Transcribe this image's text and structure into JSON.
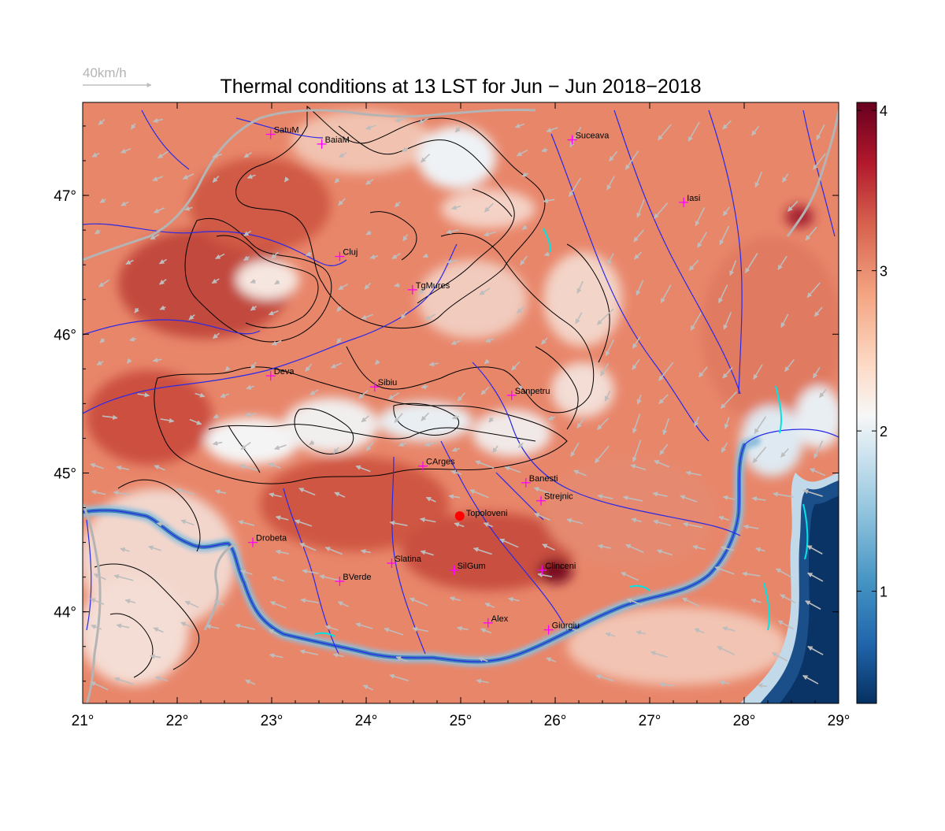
{
  "title": "Thermal conditions at 13 LST for Jun − Jun  2018−2018",
  "wind_scale": {
    "label": "40km/h"
  },
  "map": {
    "lon_range": [
      21,
      29
    ],
    "lat_range": [
      43.34,
      47.67
    ],
    "x_ticks": [
      {
        "value": 21,
        "label": "21°"
      },
      {
        "value": 22,
        "label": "22°"
      },
      {
        "value": 23,
        "label": "23°"
      },
      {
        "value": 24,
        "label": "24°"
      },
      {
        "value": 25,
        "label": "25°"
      },
      {
        "value": 26,
        "label": "26°"
      },
      {
        "value": 27,
        "label": "27°"
      },
      {
        "value": 28,
        "label": "28°"
      },
      {
        "value": 29,
        "label": "29°"
      }
    ],
    "y_ticks": [
      {
        "value": 44,
        "label": "44°"
      },
      {
        "value": 45,
        "label": "45°"
      },
      {
        "value": 46,
        "label": "46°"
      },
      {
        "value": 47,
        "label": "47°"
      }
    ],
    "cities": [
      {
        "name": "SatuM",
        "lon": 22.99,
        "lat": 47.44
      },
      {
        "name": "BaiaM",
        "lon": 23.53,
        "lat": 47.37
      },
      {
        "name": "Suceava",
        "lon": 26.18,
        "lat": 47.4
      },
      {
        "name": "Iasi",
        "lon": 27.36,
        "lat": 46.95
      },
      {
        "name": "Cluj",
        "lon": 23.72,
        "lat": 46.56
      },
      {
        "name": "TgMures",
        "lon": 24.49,
        "lat": 46.32
      },
      {
        "name": "Deva",
        "lon": 22.99,
        "lat": 45.7
      },
      {
        "name": "Sibiu",
        "lon": 24.09,
        "lat": 45.62
      },
      {
        "name": "Sanpetru",
        "lon": 25.54,
        "lat": 45.56
      },
      {
        "name": "CArges",
        "lon": 24.6,
        "lat": 45.05
      },
      {
        "name": "Banesti",
        "lon": 25.69,
        "lat": 44.93
      },
      {
        "name": "Strejnic",
        "lon": 25.85,
        "lat": 44.8
      },
      {
        "name": "Drobeta",
        "lon": 22.8,
        "lat": 44.5
      },
      {
        "name": "Slatina",
        "lon": 24.27,
        "lat": 44.35
      },
      {
        "name": "SilGum",
        "lon": 24.93,
        "lat": 44.3
      },
      {
        "name": "Clinceni",
        "lon": 25.86,
        "lat": 44.3
      },
      {
        "name": "BVerde",
        "lon": 23.72,
        "lat": 44.22
      },
      {
        "name": "Alex",
        "lon": 25.29,
        "lat": 43.92
      },
      {
        "name": "Giurgiu",
        "lon": 25.93,
        "lat": 43.87
      }
    ],
    "highlight_site": {
      "name": "Topoloveni",
      "lon": 24.99,
      "lat": 44.69,
      "color": "#ff0000"
    }
  },
  "colorbar": {
    "min": 0.3,
    "max": 4.05,
    "ticks": [
      {
        "value": 1,
        "label": "1"
      },
      {
        "value": 2,
        "label": "2"
      },
      {
        "value": 3,
        "label": "3"
      },
      {
        "value": 4,
        "label": "4"
      }
    ],
    "colors": [
      "#053061",
      "#2166ac",
      "#4393c3",
      "#92c5de",
      "#d1e5f0",
      "#f7f7f7",
      "#fddbc7",
      "#f4a582",
      "#d6604d",
      "#b2182b",
      "#67001f"
    ]
  },
  "colors": {
    "river": "#2a2ae6",
    "border": "#b4b4b4",
    "contour": "#000000",
    "city_marker": "#ff00ff",
    "wind_arrow": "#bdbdbd",
    "lake": "#00e5e5"
  }
}
